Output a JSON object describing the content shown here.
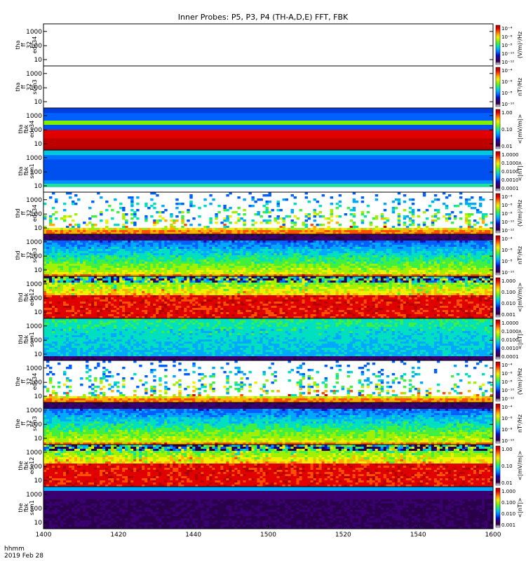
{
  "title": "Inner Probes: P5, P3, P4 (TH-A,D,E) FFT, FBK",
  "footer": {
    "line1": "hhmm",
    "line2": "2019 Feb 28"
  },
  "chart_data": {
    "type": "heatmap",
    "title": "Inner Probes: P5, P3, P4 (TH-A,D,E) FFT, FBK",
    "x_ticks": [
      "1400",
      "1420",
      "1440",
      "1500",
      "1520",
      "1540",
      "1600"
    ],
    "x_range": [
      "1400",
      "1600"
    ],
    "x_unit": "hhmm",
    "date": "2019 Feb 28",
    "y_scale": "log",
    "panels": [
      {
        "ylabel": [
          "tha",
          "ff",
          "32",
          "edc34"
        ],
        "y_ticks": [
          "1000",
          "100",
          "10"
        ],
        "cbar_ticks": [
          "10⁻⁴",
          "10⁻⁶",
          "10⁻⁸",
          "10⁻¹⁰",
          "10⁻¹²"
        ],
        "cbar_label": "(V/m)²/Hz",
        "pattern": "empty"
      },
      {
        "ylabel": [
          "tha",
          "ff",
          "32",
          "scm3"
        ],
        "y_ticks": [
          "1000",
          "100",
          "10"
        ],
        "cbar_ticks": [
          "10⁻⁴",
          "10⁻⁶",
          "10⁻⁸",
          "10⁻¹⁰"
        ],
        "cbar_label": "nT²/Hz",
        "pattern": "empty"
      },
      {
        "ylabel": [
          "tha",
          "fbk",
          "edc34"
        ],
        "y_ticks": [
          "1000",
          "100",
          "10"
        ],
        "cbar_ticks": [
          "1.00",
          "0.10",
          "0.01"
        ],
        "cbar_label": "<|mV/m|>",
        "pattern": "bands_a"
      },
      {
        "ylabel": [
          "tha",
          "fbk",
          "scm1"
        ],
        "y_ticks": [
          "1000",
          "100",
          "10"
        ],
        "cbar_ticks": [
          "1.0000",
          "0.1000",
          "0.0100",
          "0.0010",
          "0.0001"
        ],
        "cbar_label": "<|nT|>",
        "pattern": "bands_b"
      },
      {
        "ylabel": [
          "thd",
          "ff",
          "32",
          "edc34"
        ],
        "y_ticks": [
          "1000",
          "100",
          "10"
        ],
        "cbar_ticks": [
          "10⁻⁴",
          "10⁻⁶",
          "10⁻⁸",
          "10⁻¹⁰",
          "10⁻¹²"
        ],
        "cbar_label": "(V/m)²/Hz",
        "pattern": "spiky"
      },
      {
        "ylabel": [
          "thd",
          "ff",
          "32",
          "scm3"
        ],
        "y_ticks": [
          "1000",
          "100",
          "10"
        ],
        "cbar_ticks": [
          "10⁻⁴",
          "10⁻⁶",
          "10⁻⁸",
          "10⁻¹⁰"
        ],
        "cbar_label": "nT²/Hz",
        "pattern": "scm_ff"
      },
      {
        "ylabel": [
          "thd",
          "fbk",
          "edc12"
        ],
        "y_ticks": [
          "1000",
          "100",
          "10"
        ],
        "cbar_ticks": [
          "1.000",
          "0.100",
          "0.010",
          "0.001"
        ],
        "cbar_label": "<|mV/m|>",
        "pattern": "fbk_edc"
      },
      {
        "ylabel": [
          "thd",
          "fbk",
          "scm1"
        ],
        "y_ticks": [
          "1000",
          "100",
          "10"
        ],
        "cbar_ticks": [
          "1.0000",
          "0.1000",
          "0.0100",
          "0.0010",
          "0.0001"
        ],
        "cbar_label": "<|nT|>",
        "pattern": "fbk_scm"
      },
      {
        "ylabel": [
          "the",
          "ff",
          "32",
          "edc34"
        ],
        "y_ticks": [
          "1000",
          "100",
          "10"
        ],
        "cbar_ticks": [
          "10⁻⁴",
          "10⁻⁶",
          "10⁻⁸",
          "10⁻¹⁰",
          "10⁻¹²"
        ],
        "cbar_label": "(V/m)²/Hz",
        "pattern": "spiky"
      },
      {
        "ylabel": [
          "the",
          "ff",
          "32",
          "scm3"
        ],
        "y_ticks": [
          "1000",
          "100",
          "10"
        ],
        "cbar_ticks": [
          "10⁻⁴",
          "10⁻⁶",
          "10⁻⁸",
          "10⁻¹⁰"
        ],
        "cbar_label": "nT²/Hz",
        "pattern": "scm_ff"
      },
      {
        "ylabel": [
          "the",
          "fbk",
          "edc12"
        ],
        "y_ticks": [
          "1000",
          "100",
          "10"
        ],
        "cbar_ticks": [
          "1.00",
          "0.10",
          "0.01"
        ],
        "cbar_label": "<|mV/m|>",
        "pattern": "fbk_edc2"
      },
      {
        "ylabel": [
          "the",
          "fbk",
          "scm1"
        ],
        "y_ticks": [
          "1000",
          "100",
          "10"
        ],
        "cbar_ticks": [
          "1.000",
          "0.100",
          "0.010",
          "0.001"
        ],
        "cbar_label": "<|nT|>",
        "pattern": "fbk_scm2"
      }
    ]
  }
}
